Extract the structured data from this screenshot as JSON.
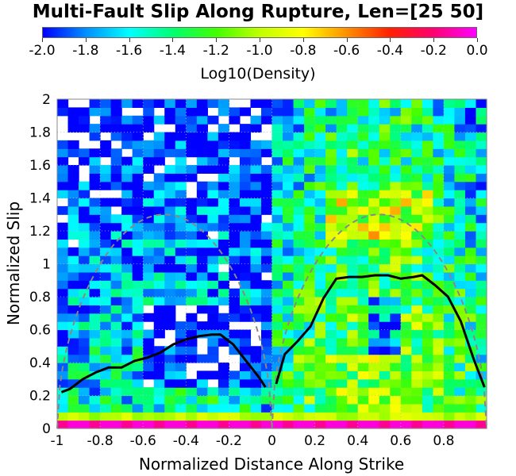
{
  "chart_data": {
    "type": "heatmap",
    "title": "Multi-Fault Slip Along Rupture, Len=[25 50]",
    "xlabel": "Normalized Distance Along Strike",
    "ylabel": "Normalized Slip",
    "xlim": [
      -1,
      1
    ],
    "ylim": [
      0,
      2
    ],
    "x_ticks": [
      "-1",
      "-0.8",
      "-0.6",
      "-0.4",
      "-0.2",
      "0",
      "0.2",
      "0.4",
      "0.6",
      "0.8"
    ],
    "y_ticks": [
      "0",
      "0.2",
      "0.4",
      "0.6",
      "0.8",
      "1",
      "1.2",
      "1.4",
      "1.6",
      "1.8",
      "2"
    ],
    "colorbar": {
      "label": "Log10(Density)",
      "range": [
        -2.0,
        0.0
      ],
      "ticks": [
        "-2.0",
        "-1.8",
        "-1.6",
        "-1.4",
        "-1.2",
        "-1.0",
        "-0.8",
        "-0.6",
        "-0.4",
        "-0.2",
        "0.0"
      ],
      "colors": [
        "#0000ff",
        "#0090ff",
        "#00ffff",
        "#00ff70",
        "#40ff00",
        "#c0ff00",
        "#ffff00",
        "#ff9000",
        "#ff2000",
        "#ff0070",
        "#ff00ff"
      ]
    },
    "grid": "dotted",
    "mean_curve_left": {
      "x": [
        -0.98,
        -0.94,
        -0.88,
        -0.82,
        -0.76,
        -0.7,
        -0.64,
        -0.58,
        -0.52,
        -0.46,
        -0.4,
        -0.34,
        -0.28,
        -0.24,
        -0.18,
        -0.12,
        -0.06,
        -0.03
      ],
      "y": [
        0.22,
        0.24,
        0.3,
        0.34,
        0.37,
        0.37,
        0.41,
        0.43,
        0.46,
        0.51,
        0.54,
        0.56,
        0.57,
        0.57,
        0.51,
        0.41,
        0.31,
        0.25
      ]
    },
    "mean_curve_right": {
      "x": [
        0.02,
        0.06,
        0.12,
        0.18,
        0.24,
        0.3,
        0.36,
        0.42,
        0.48,
        0.54,
        0.6,
        0.66,
        0.7,
        0.76,
        0.82,
        0.88,
        0.94,
        0.99
      ],
      "y": [
        0.27,
        0.45,
        0.53,
        0.62,
        0.79,
        0.91,
        0.92,
        0.92,
        0.93,
        0.93,
        0.91,
        0.92,
        0.93,
        0.87,
        0.8,
        0.65,
        0.42,
        0.25
      ]
    },
    "reference_curves": [
      {
        "x_range": [
          -1,
          0
        ],
        "peak": 1.3,
        "shape": "sqrt-sine"
      },
      {
        "x_range": [
          0,
          1
        ],
        "peak": 1.3,
        "shape": "sqrt-sine"
      }
    ]
  }
}
